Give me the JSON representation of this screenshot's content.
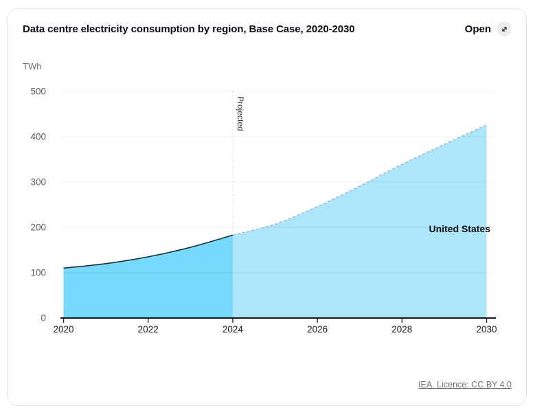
{
  "card": {
    "title": "Data centre electricity consumption by region, Base Case, 2020-2030",
    "open_label": "Open",
    "unit_label": "TWh",
    "source_link": "IEA. Licence: CC BY 4.0"
  },
  "chart_data": {
    "type": "area",
    "title": "Data centre electricity consumption by region, Base Case, 2020-2030",
    "ylabel": "TWh",
    "projected_label": "Projected",
    "projection_start_year": 2024,
    "x": [
      2020,
      2021,
      2022,
      2023,
      2024,
      2025,
      2026,
      2027,
      2028,
      2029,
      2030
    ],
    "series": [
      {
        "name": "United States",
        "values": [
          110,
          120,
          135,
          156,
          183,
          207,
          246,
          291,
          339,
          383,
          426
        ]
      }
    ],
    "xticks": [
      2020,
      2022,
      2024,
      2026,
      2028,
      2030
    ],
    "yticks": [
      0,
      100,
      200,
      300,
      400,
      500
    ],
    "ylim": [
      0,
      500
    ],
    "grid": true,
    "colors": {
      "historical_fill": "#74D9FA",
      "projected_fill": "#ADE6FB",
      "historical_line": "#1E2C36",
      "projected_line": "#8FB7CC",
      "divider_line": "#d9d9dc",
      "axis_line": "#14181c",
      "grid_overlay": "rgba(0,0,0,0.075)",
      "x_tick_text": "#17171f",
      "y_tick_text": "#5c5c63"
    }
  }
}
